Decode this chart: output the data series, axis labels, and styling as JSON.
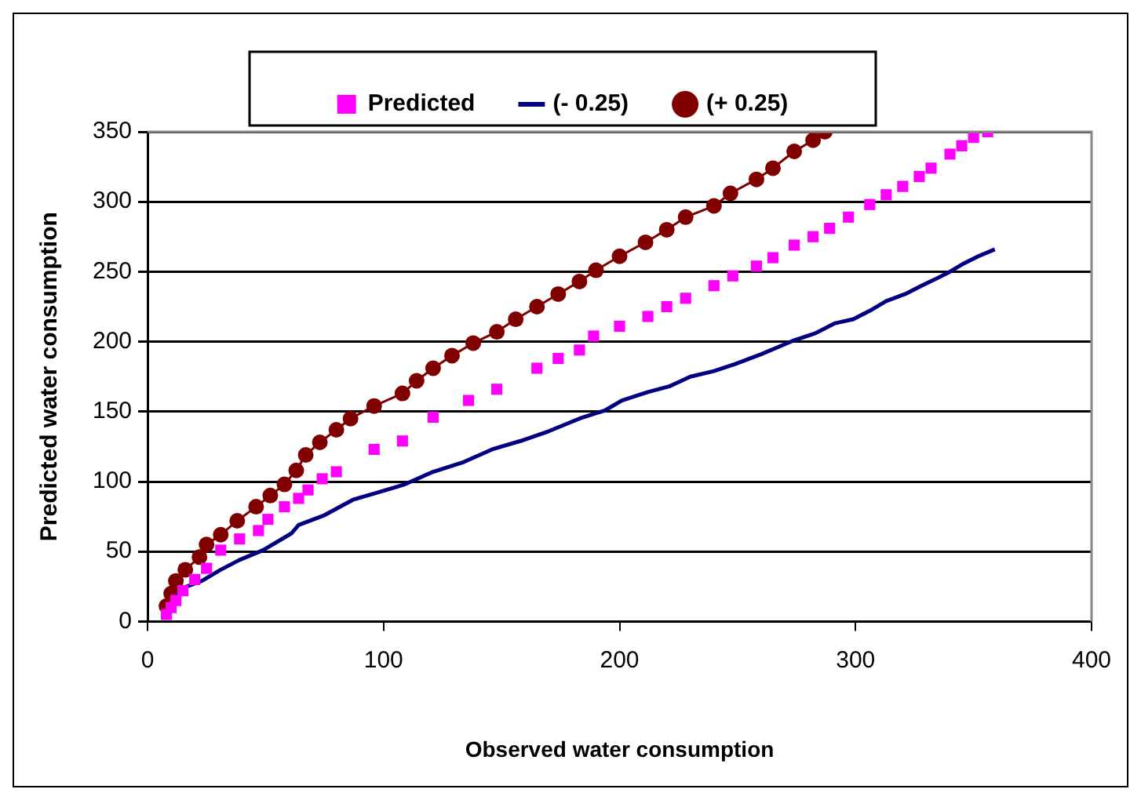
{
  "chart_data": {
    "type": "scatter",
    "xlabel": "Observed water consumption",
    "ylabel": "Predicted water consumption",
    "xlim": [
      0,
      400
    ],
    "xticks": [
      0,
      100,
      200,
      300,
      400
    ],
    "ylim": [
      0,
      350
    ],
    "yticks": [
      0,
      50,
      100,
      150,
      200,
      250,
      300,
      350
    ],
    "grid": "y",
    "legend": "top",
    "series": [
      {
        "name": "Predicted",
        "marker": "square",
        "color": "#ff00ff",
        "x": [
          8,
          10,
          12,
          15,
          20,
          25,
          31,
          39,
          47,
          51,
          58,
          64,
          68,
          74,
          80,
          96,
          108,
          121,
          136,
          148,
          165,
          174,
          183,
          189,
          200,
          212,
          220,
          228,
          240,
          248,
          258,
          265,
          274,
          282,
          289,
          297,
          306,
          313,
          320,
          327,
          332,
          340,
          345,
          350,
          356
        ],
        "values": [
          5,
          10,
          15,
          22,
          30,
          38,
          51,
          59,
          65,
          73,
          82,
          88,
          94,
          102,
          107,
          123,
          129,
          146,
          158,
          166,
          181,
          188,
          194,
          204,
          211,
          218,
          225,
          231,
          240,
          247,
          254,
          260,
          269,
          275,
          281,
          289,
          298,
          305,
          311,
          318,
          324,
          334,
          340,
          346,
          350
        ]
      },
      {
        "name": "(- 0.25)",
        "type": "line",
        "marker": "none",
        "color": "#000080",
        "x": [
          9,
          11,
          15,
          23,
          31,
          39,
          49,
          61,
          64,
          75,
          87,
          97,
          109,
          121,
          134,
          146,
          158,
          170,
          183,
          194,
          201,
          212,
          221,
          230,
          240,
          249,
          260,
          267,
          274,
          283,
          291,
          299,
          306,
          313,
          321,
          328,
          333,
          340,
          346,
          352,
          359
        ],
        "values": [
          5,
          15,
          24,
          29,
          37,
          44,
          51,
          63,
          69,
          76,
          87,
          92,
          98,
          107,
          114,
          123,
          129,
          136,
          145,
          151,
          158,
          164,
          168,
          175,
          179,
          184,
          191,
          196,
          201,
          206,
          213,
          216,
          222,
          229,
          234,
          240,
          244,
          250,
          256,
          261,
          266
        ]
      },
      {
        "name": "(+ 0.25)",
        "type": "line",
        "marker": "circle",
        "color": "#800000",
        "x": [
          8,
          10,
          12,
          16,
          22,
          25,
          31,
          38,
          46,
          52,
          58,
          63,
          67,
          73,
          80,
          86,
          96,
          108,
          114,
          121,
          129,
          138,
          148,
          156,
          165,
          174,
          183,
          190,
          200,
          211,
          220,
          228,
          240,
          247,
          258,
          265,
          274,
          282,
          287
        ],
        "values": [
          11,
          20,
          29,
          37,
          46,
          55,
          62,
          72,
          82,
          90,
          98,
          108,
          119,
          128,
          137,
          145,
          154,
          163,
          172,
          181,
          190,
          199,
          207,
          216,
          225,
          234,
          243,
          251,
          261,
          271,
          280,
          289,
          297,
          306,
          316,
          324,
          336,
          344,
          350
        ]
      }
    ]
  }
}
